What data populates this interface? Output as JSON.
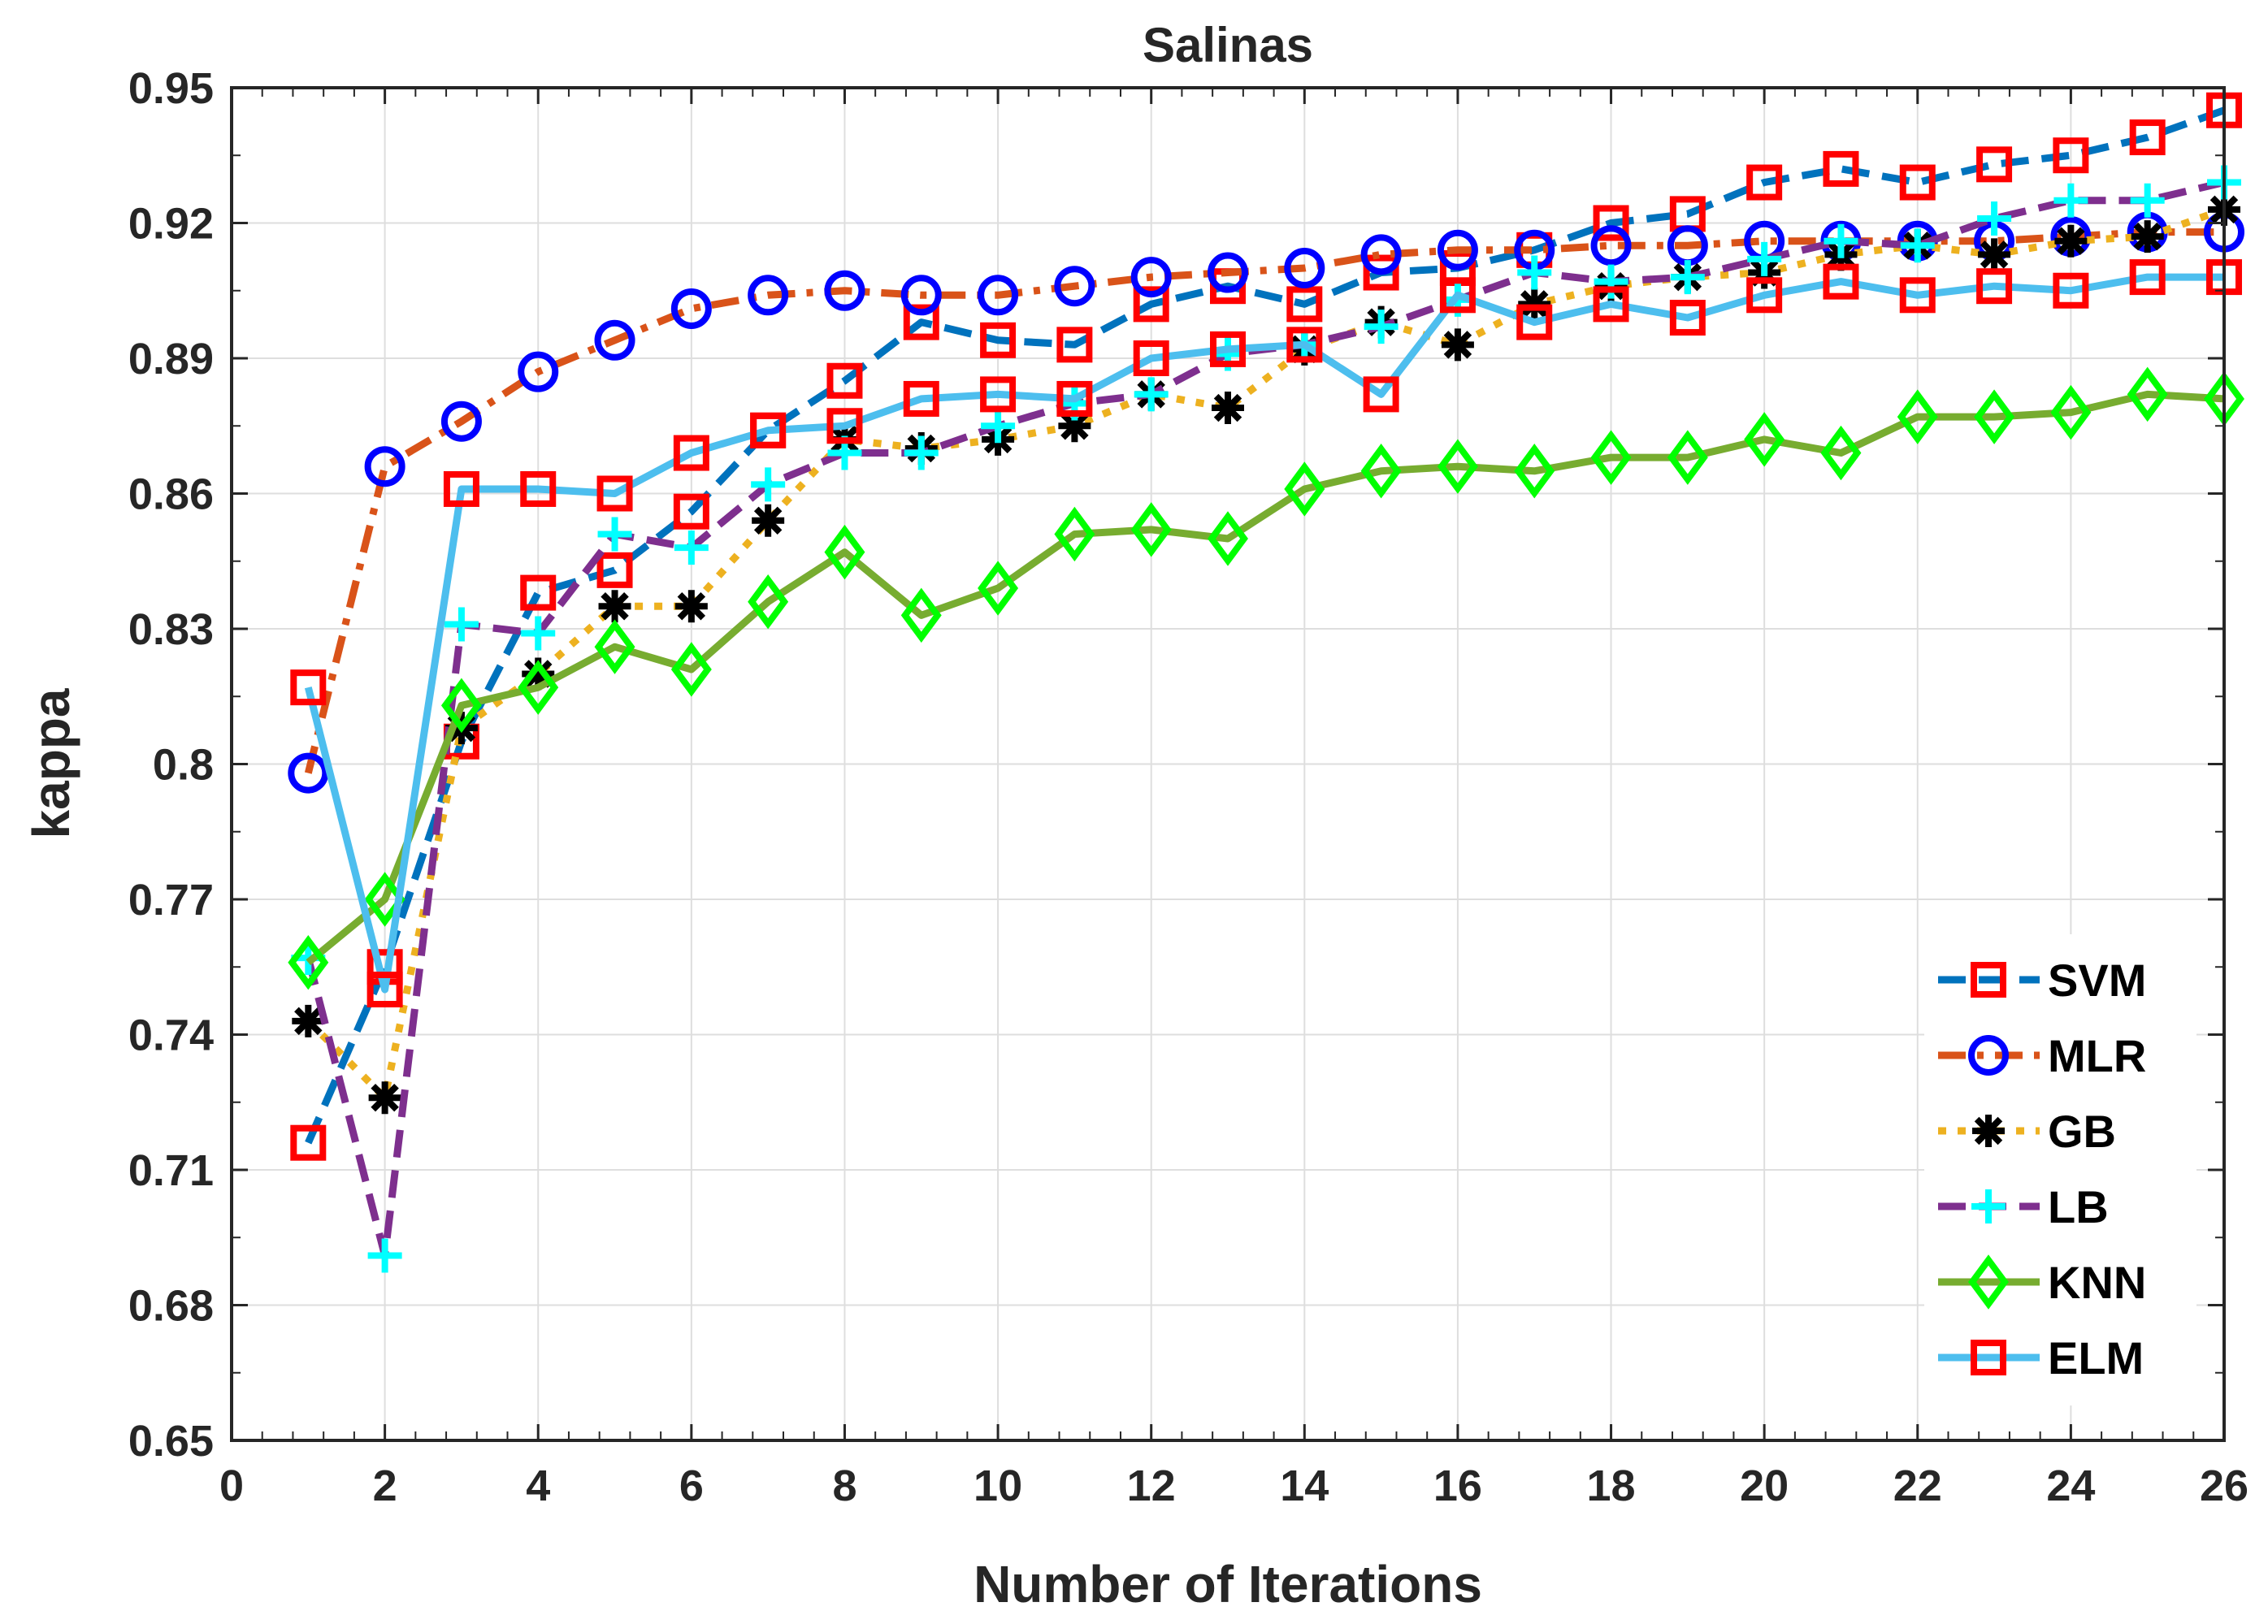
{
  "chart_data": {
    "type": "line",
    "title": "Salinas",
    "xlabel": "Number of Iterations",
    "ylabel": "kappa",
    "xlim": [
      0,
      26
    ],
    "ylim": [
      0.65,
      0.95
    ],
    "xticks": [
      "0",
      "2",
      "4",
      "6",
      "8",
      "10",
      "12",
      "14",
      "16",
      "18",
      "20",
      "22",
      "24",
      "26"
    ],
    "yticks": [
      "0.65",
      "0.68",
      "0.71",
      "0.74",
      "0.77",
      "0.8",
      "0.83",
      "0.86",
      "0.89",
      "0.92",
      "0.95"
    ],
    "grid": true,
    "legend_position": "bottom-right",
    "x": [
      1,
      2,
      3,
      4,
      5,
      6,
      7,
      8,
      9,
      10,
      11,
      12,
      13,
      14,
      15,
      16,
      17,
      18,
      19,
      20,
      21,
      22,
      23,
      24,
      25,
      26
    ],
    "series": [
      {
        "name": "SVM",
        "line_color": "#0072BD",
        "marker_color": "#FF0000",
        "dash": "dashed",
        "marker": "square",
        "values": [
          0.716,
          0.755,
          0.805,
          0.838,
          0.843,
          0.856,
          0.874,
          0.885,
          0.898,
          0.894,
          0.893,
          0.902,
          0.906,
          0.902,
          0.909,
          0.91,
          0.914,
          0.92,
          0.922,
          0.929,
          0.932,
          0.929,
          0.933,
          0.935,
          0.939,
          0.945
        ]
      },
      {
        "name": "MLR",
        "line_color": "#D95319",
        "marker_color": "#0000FF",
        "dash": "dashdot",
        "marker": "circle",
        "values": [
          0.798,
          0.866,
          0.876,
          0.887,
          0.894,
          0.901,
          0.904,
          0.905,
          0.904,
          0.904,
          0.906,
          0.908,
          0.909,
          0.91,
          0.913,
          0.914,
          0.914,
          0.915,
          0.915,
          0.916,
          0.916,
          0.916,
          0.916,
          0.917,
          0.918,
          0.918
        ]
      },
      {
        "name": "GB",
        "line_color": "#EDB120",
        "marker_color": "#000000",
        "dash": "dotted",
        "marker": "asterisk",
        "values": [
          0.743,
          0.726,
          0.808,
          0.82,
          0.835,
          0.835,
          0.854,
          0.872,
          0.87,
          0.872,
          0.875,
          0.882,
          0.879,
          0.892,
          0.898,
          0.893,
          0.902,
          0.906,
          0.908,
          0.909,
          0.913,
          0.915,
          0.913,
          0.916,
          0.917,
          0.923
        ]
      },
      {
        "name": "LB",
        "line_color": "#7E2F8E",
        "marker_color": "#00FFFF",
        "dash": "dashed",
        "marker": "plus",
        "values": [
          0.757,
          0.691,
          0.831,
          0.829,
          0.851,
          0.848,
          0.862,
          0.869,
          0.869,
          0.875,
          0.88,
          0.882,
          0.891,
          0.893,
          0.897,
          0.903,
          0.909,
          0.907,
          0.908,
          0.912,
          0.916,
          0.915,
          0.921,
          0.925,
          0.925,
          0.929
        ]
      },
      {
        "name": "KNN",
        "line_color": "#77AC30",
        "marker_color": "#00FF00",
        "dash": "solid",
        "marker": "diamond",
        "values": [
          0.756,
          0.77,
          0.813,
          0.817,
          0.826,
          0.821,
          0.836,
          0.847,
          0.833,
          0.839,
          0.851,
          0.852,
          0.85,
          0.861,
          0.865,
          0.866,
          0.865,
          0.868,
          0.868,
          0.872,
          0.869,
          0.877,
          0.877,
          0.878,
          0.882,
          0.881
        ]
      },
      {
        "name": "ELM",
        "line_color": "#4DBEEE",
        "marker_color": "#FF0000",
        "dash": "solid",
        "marker": "square",
        "values": [
          0.817,
          0.75,
          0.861,
          0.861,
          0.86,
          0.869,
          0.874,
          0.875,
          0.881,
          0.882,
          0.881,
          0.89,
          0.892,
          0.893,
          0.882,
          0.904,
          0.898,
          0.902,
          0.899,
          0.904,
          0.907,
          0.904,
          0.906,
          0.905,
          0.908,
          0.908
        ]
      }
    ]
  }
}
